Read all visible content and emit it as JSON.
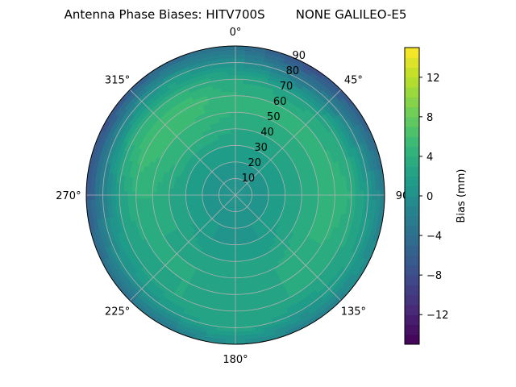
{
  "chart_data": {
    "type": "heatmap",
    "subtype": "polar-contour",
    "title": "Antenna Phase Biases: HITV700S        NONE GALILEO-E5",
    "theta_direction": "clockwise",
    "theta_zero": "north",
    "theta_tick_labels": [
      "0°",
      "45°",
      "90",
      "135°",
      "180°",
      "225°",
      "270°",
      "315°"
    ],
    "theta_ticks": [
      0,
      45,
      90,
      135,
      180,
      225,
      270,
      315
    ],
    "r_ticks": [
      10,
      20,
      30,
      40,
      50,
      60,
      70,
      80,
      90
    ],
    "r_tick_labels": [
      "10",
      "20",
      "30",
      "40",
      "50",
      "60",
      "70",
      "80",
      "90"
    ],
    "rlim": [
      0,
      90
    ],
    "grid": true,
    "azimuth": [
      0,
      30,
      60,
      90,
      120,
      150,
      180,
      210,
      240,
      270,
      300,
      330
    ],
    "radius": [
      0,
      10,
      20,
      30,
      40,
      50,
      60,
      70,
      80,
      90
    ],
    "values": [
      [
        0,
        0,
        1,
        2,
        3,
        4,
        4,
        3,
        0,
        -4
      ],
      [
        0,
        0,
        1,
        2,
        3,
        4,
        4,
        2,
        -3,
        -8
      ],
      [
        0,
        0,
        1,
        2,
        3,
        4,
        4,
        3,
        -1,
        -6
      ],
      [
        0,
        0,
        1,
        2,
        3,
        4,
        5,
        4,
        1,
        -2
      ],
      [
        0,
        0,
        1,
        2,
        3,
        4,
        4,
        3,
        2,
        -1
      ],
      [
        0,
        0,
        1,
        1,
        2,
        3,
        3,
        3,
        1,
        -2
      ],
      [
        0,
        0,
        0,
        1,
        2,
        2,
        2,
        3,
        3,
        0
      ],
      [
        0,
        0,
        1,
        1,
        2,
        3,
        3,
        3,
        1,
        -3
      ],
      [
        0,
        0,
        1,
        2,
        3,
        3,
        3,
        2,
        0,
        -4
      ],
      [
        0,
        0,
        1,
        2,
        3,
        4,
        4,
        2,
        -2,
        -7
      ],
      [
        0,
        0,
        1,
        2,
        4,
        5,
        6,
        4,
        -1,
        -8
      ],
      [
        0,
        0,
        1,
        2,
        4,
        5,
        6,
        4,
        1,
        -5
      ]
    ],
    "colormap": "viridis",
    "colorbar": {
      "label": "Bias (mm)",
      "range": [
        -15,
        15
      ],
      "ticks": [
        -12,
        -8,
        -4,
        0,
        4,
        8,
        12
      ],
      "tick_labels": [
        "−12",
        "−8",
        "−4",
        "0",
        "4",
        "8",
        "12"
      ]
    }
  }
}
